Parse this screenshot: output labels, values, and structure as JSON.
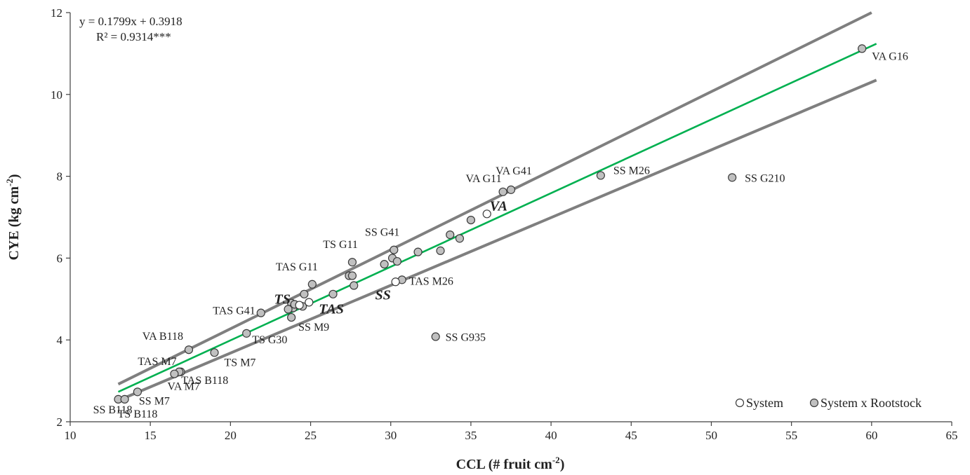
{
  "chart_data": {
    "type": "scatter",
    "xlabel": "CCL (# fruit cm",
    "xlabel_sup": "-2",
    "xlabel_tail": ")",
    "ylabel": "CYE (kg cm",
    "ylabel_sup": "-2",
    "ylabel_tail": ")",
    "xlim": [
      10,
      65
    ],
    "ylim": [
      2,
      12
    ],
    "x_ticks": [
      10,
      15,
      20,
      25,
      30,
      35,
      40,
      45,
      50,
      55,
      60,
      65
    ],
    "y_ticks": [
      2,
      4,
      6,
      8,
      10,
      12
    ],
    "equation": "y = 0.1799x + 0.3918",
    "r2": "R² = 0.9314***",
    "regression": {
      "slope": 0.1799,
      "intercept": 0.3918,
      "x_range": [
        13,
        60.3
      ],
      "color": "#00b050"
    },
    "confidence_bounds": [
      {
        "x_range": [
          13,
          60
        ],
        "y_range": [
          2.92,
          12.0
        ],
        "color": "#7f7f7f"
      },
      {
        "x_range": [
          13,
          60.3
        ],
        "y_range": [
          2.52,
          10.35
        ],
        "color": "#7f7f7f"
      }
    ],
    "legend": {
      "position": "bottom-right",
      "system": "System",
      "system_rootstock": "System x Rootstock"
    },
    "colors": {
      "system_fill": "#ffffff",
      "rootstock_fill": "#c0c0c0",
      "marker_stroke": "#3a3a3a"
    },
    "series": [
      {
        "name": "System",
        "marker": "open",
        "points": [
          {
            "x": 36.0,
            "y": 7.08,
            "label": "VA"
          },
          {
            "x": 24.3,
            "y": 4.85,
            "label": "TS"
          },
          {
            "x": 24.9,
            "y": 4.92,
            "label": "TAS"
          },
          {
            "x": 30.3,
            "y": 5.42,
            "label": "SS"
          }
        ]
      },
      {
        "name": "System x Rootstock",
        "marker": "filled",
        "points": [
          {
            "x": 59.4,
            "y": 11.12,
            "label": "VA G16"
          },
          {
            "x": 43.1,
            "y": 8.02,
            "label": "SS M26"
          },
          {
            "x": 51.3,
            "y": 7.97,
            "label": "SS G210"
          },
          {
            "x": 37.5,
            "y": 7.67,
            "label": "VA G41"
          },
          {
            "x": 37.0,
            "y": 7.62,
            "label": "VA G11"
          },
          {
            "x": 35.0,
            "y": 6.93,
            "label": ""
          },
          {
            "x": 33.7,
            "y": 6.57,
            "label": ""
          },
          {
            "x": 34.3,
            "y": 6.48,
            "label": ""
          },
          {
            "x": 30.2,
            "y": 6.2,
            "label": "SS G41"
          },
          {
            "x": 31.7,
            "y": 6.15,
            "label": ""
          },
          {
            "x": 33.1,
            "y": 6.18,
            "label": ""
          },
          {
            "x": 27.6,
            "y": 5.9,
            "label": "TS G11"
          },
          {
            "x": 30.1,
            "y": 6.0,
            "label": ""
          },
          {
            "x": 30.4,
            "y": 5.92,
            "label": ""
          },
          {
            "x": 29.6,
            "y": 5.85,
            "label": ""
          },
          {
            "x": 27.4,
            "y": 5.57,
            "label": ""
          },
          {
            "x": 27.6,
            "y": 5.57,
            "label": ""
          },
          {
            "x": 25.1,
            "y": 5.36,
            "label": "TAS G11"
          },
          {
            "x": 27.7,
            "y": 5.33,
            "label": ""
          },
          {
            "x": 30.7,
            "y": 5.47,
            "label": "TAS M26"
          },
          {
            "x": 26.4,
            "y": 5.12,
            "label": ""
          },
          {
            "x": 24.6,
            "y": 5.12,
            "label": ""
          },
          {
            "x": 23.8,
            "y": 4.9,
            "label": ""
          },
          {
            "x": 23.9,
            "y": 4.78,
            "label": ""
          },
          {
            "x": 23.6,
            "y": 4.75,
            "label": ""
          },
          {
            "x": 24.0,
            "y": 4.87,
            "label": ""
          },
          {
            "x": 24.5,
            "y": 4.82,
            "label": ""
          },
          {
            "x": 21.9,
            "y": 4.66,
            "label": "TAS G41"
          },
          {
            "x": 23.8,
            "y": 4.55,
            "label": "SS M9"
          },
          {
            "x": 21.0,
            "y": 4.16,
            "label": "TS G30"
          },
          {
            "x": 32.8,
            "y": 4.08,
            "label": "SS G935"
          },
          {
            "x": 17.4,
            "y": 3.76,
            "label": "VA B118"
          },
          {
            "x": 19.0,
            "y": 3.69,
            "label": "TS M7"
          },
          {
            "x": 16.9,
            "y": 3.22,
            "label": "TAS M7"
          },
          {
            "x": 16.8,
            "y": 3.22,
            "label": "TAS B118"
          },
          {
            "x": 16.5,
            "y": 3.17,
            "label": "VA M7"
          },
          {
            "x": 14.2,
            "y": 2.73,
            "label": "SS M7"
          },
          {
            "x": 13.0,
            "y": 2.55,
            "label": "SS B118"
          },
          {
            "x": 13.4,
            "y": 2.55,
            "label": "TS B118"
          }
        ]
      }
    ]
  }
}
